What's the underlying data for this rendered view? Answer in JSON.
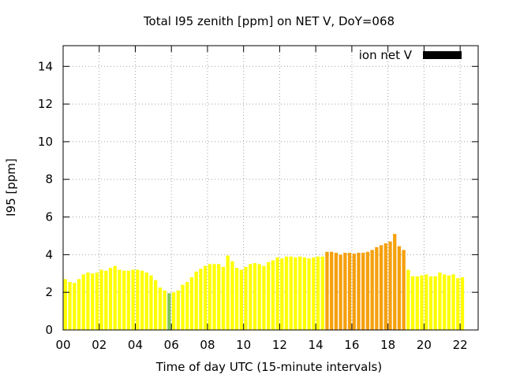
{
  "chart_data": {
    "type": "bar",
    "title": "Total I95 zenith [ppm] on NET V, DoY=068",
    "xlabel": "Time of day UTC (15-minute intervals)",
    "ylabel": "I95 [ppm]",
    "ylim": [
      0,
      15.1
    ],
    "xlim": [
      0,
      23.0
    ],
    "x_ticks": [
      "00",
      "02",
      "04",
      "06",
      "08",
      "10",
      "12",
      "14",
      "16",
      "18",
      "20",
      "22"
    ],
    "x_tick_values": [
      0,
      2,
      4,
      6,
      8,
      10,
      12,
      14,
      16,
      18,
      20,
      22
    ],
    "y_ticks": [
      "0",
      "2",
      "4",
      "6",
      "8",
      "10",
      "12",
      "14"
    ],
    "y_tick_values": [
      0,
      2,
      4,
      6,
      8,
      10,
      12,
      14
    ],
    "grid": true,
    "legend": {
      "label": "ion net V",
      "placement": "top-right",
      "color": "#000000"
    },
    "colors": {
      "low": "#ffff00",
      "mid": "#f5a00e",
      "min": "#7cc55a"
    },
    "series": [
      {
        "bin_hours": 0.25,
        "values": [
          2.7,
          2.55,
          2.5,
          2.7,
          2.95,
          3.05,
          3.0,
          3.05,
          3.2,
          3.15,
          3.3,
          3.4,
          3.2,
          3.15,
          3.15,
          3.2,
          3.2,
          3.15,
          3.05,
          2.9,
          2.65,
          2.25,
          2.1,
          1.95,
          2.0,
          2.1,
          2.4,
          2.55,
          2.8,
          3.1,
          3.25,
          3.4,
          3.5,
          3.5,
          3.5,
          3.35,
          3.95,
          3.65,
          3.3,
          3.2,
          3.35,
          3.5,
          3.55,
          3.5,
          3.4,
          3.6,
          3.7,
          3.85,
          3.8,
          3.9,
          3.9,
          3.85,
          3.9,
          3.85,
          3.8,
          3.85,
          3.9,
          3.9,
          4.15,
          4.15,
          4.1,
          4.0,
          4.1,
          4.1,
          4.05,
          4.1,
          4.1,
          4.15,
          4.25,
          4.4,
          4.5,
          4.6,
          4.7,
          5.1,
          4.45,
          4.25,
          3.2,
          2.85,
          2.85,
          2.9,
          2.95,
          2.85,
          2.85,
          3.05,
          2.95,
          2.9,
          2.95,
          2.75,
          2.8
        ],
        "color_classes": [
          "low",
          "low",
          "low",
          "low",
          "low",
          "low",
          "low",
          "low",
          "low",
          "low",
          "low",
          "low",
          "low",
          "low",
          "low",
          "low",
          "low",
          "low",
          "low",
          "low",
          "low",
          "low",
          "low",
          "min",
          "low",
          "low",
          "low",
          "low",
          "low",
          "low",
          "low",
          "low",
          "low",
          "low",
          "low",
          "low",
          "low",
          "low",
          "low",
          "low",
          "low",
          "low",
          "low",
          "low",
          "low",
          "low",
          "low",
          "low",
          "low",
          "low",
          "low",
          "low",
          "low",
          "low",
          "low",
          "low",
          "low",
          "low",
          "mid",
          "mid",
          "mid",
          "mid",
          "mid",
          "mid",
          "mid",
          "mid",
          "mid",
          "mid",
          "mid",
          "mid",
          "mid",
          "mid",
          "mid",
          "mid",
          "mid",
          "mid",
          "low",
          "low",
          "low",
          "low",
          "low",
          "low",
          "low",
          "low",
          "low",
          "low",
          "low",
          "low",
          "low"
        ]
      }
    ]
  }
}
